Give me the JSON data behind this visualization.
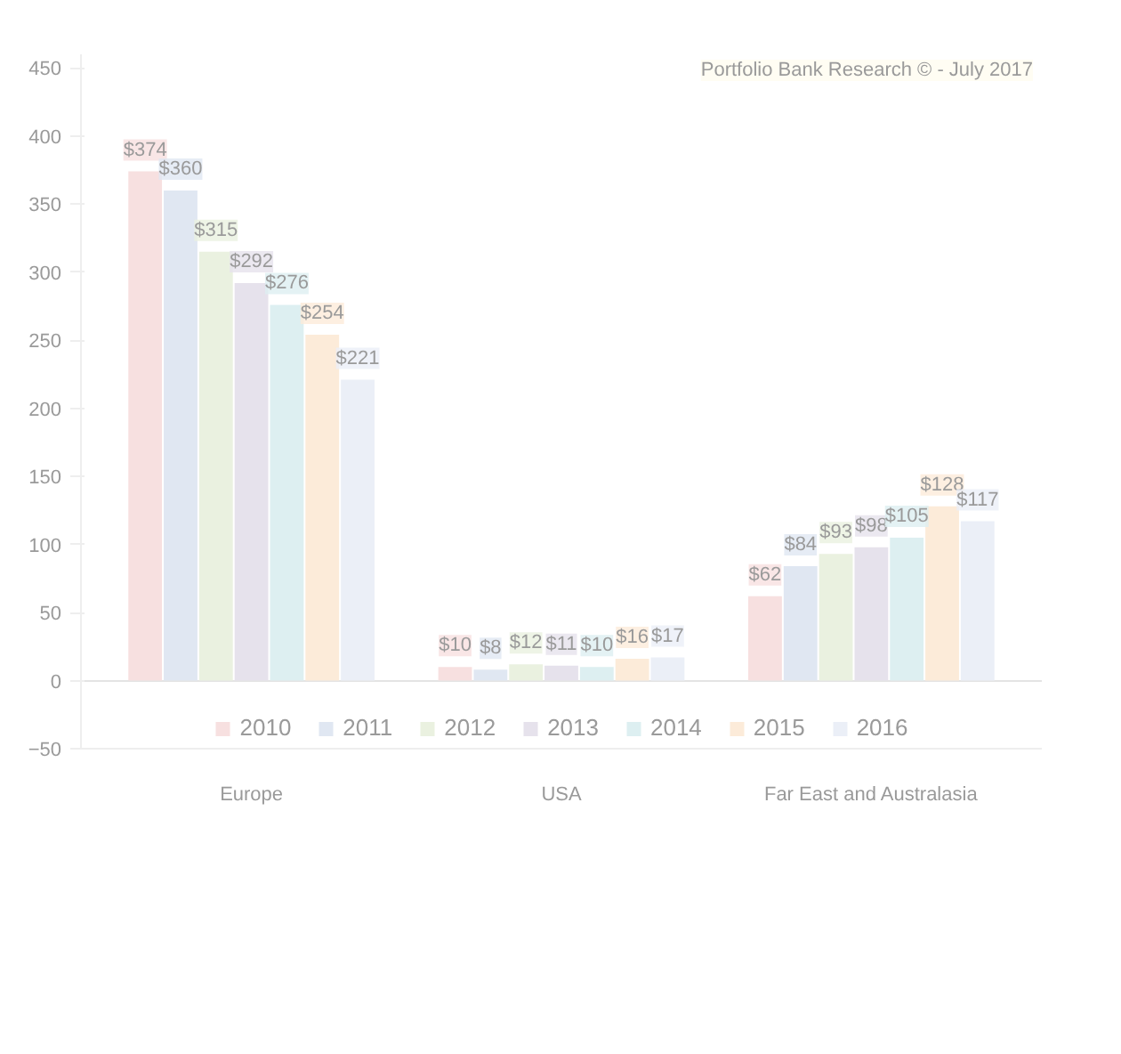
{
  "chart_data": {
    "type": "bar",
    "categories": [
      "Europe",
      "USA",
      "Far East and Australasia"
    ],
    "series": [
      {
        "name": "2010",
        "color": "#f7e0e0",
        "values": [
          374,
          10,
          62
        ],
        "value_labels": [
          "$374",
          "$10",
          "$62"
        ]
      },
      {
        "name": "2011",
        "color": "#e0e7f2",
        "values": [
          360,
          8,
          84
        ],
        "value_labels": [
          "$360",
          "$8",
          "$84"
        ]
      },
      {
        "name": "2012",
        "color": "#eaf1e0",
        "values": [
          315,
          12,
          93
        ],
        "value_labels": [
          "$315",
          "$12",
          "$93"
        ]
      },
      {
        "name": "2013",
        "color": "#e6e2ec",
        "values": [
          292,
          11,
          98
        ],
        "value_labels": [
          "$292",
          "$11",
          "$98"
        ]
      },
      {
        "name": "2014",
        "color": "#ddeff1",
        "values": [
          276,
          10,
          105
        ],
        "value_labels": [
          "$276",
          "$10",
          "$105"
        ]
      },
      {
        "name": "2015",
        "color": "#fcebd9",
        "values": [
          254,
          16,
          128
        ],
        "value_labels": [
          "$254",
          "$16",
          "$128"
        ]
      },
      {
        "name": "2016",
        "color": "#ebeff7",
        "values": [
          221,
          17,
          117
        ],
        "value_labels": [
          "$221",
          "$17",
          "$117"
        ]
      }
    ],
    "ylim": [
      -50,
      460
    ],
    "yticks": [
      -50,
      0,
      50,
      100,
      150,
      200,
      250,
      300,
      350,
      400,
      450
    ],
    "annotations": [
      "Portfolio Bank Research © - July 2017"
    ],
    "ref_lines": [
      {
        "axis": "y",
        "value": 0,
        "color": "#e4e4e4"
      }
    ],
    "legend": "bottom"
  }
}
